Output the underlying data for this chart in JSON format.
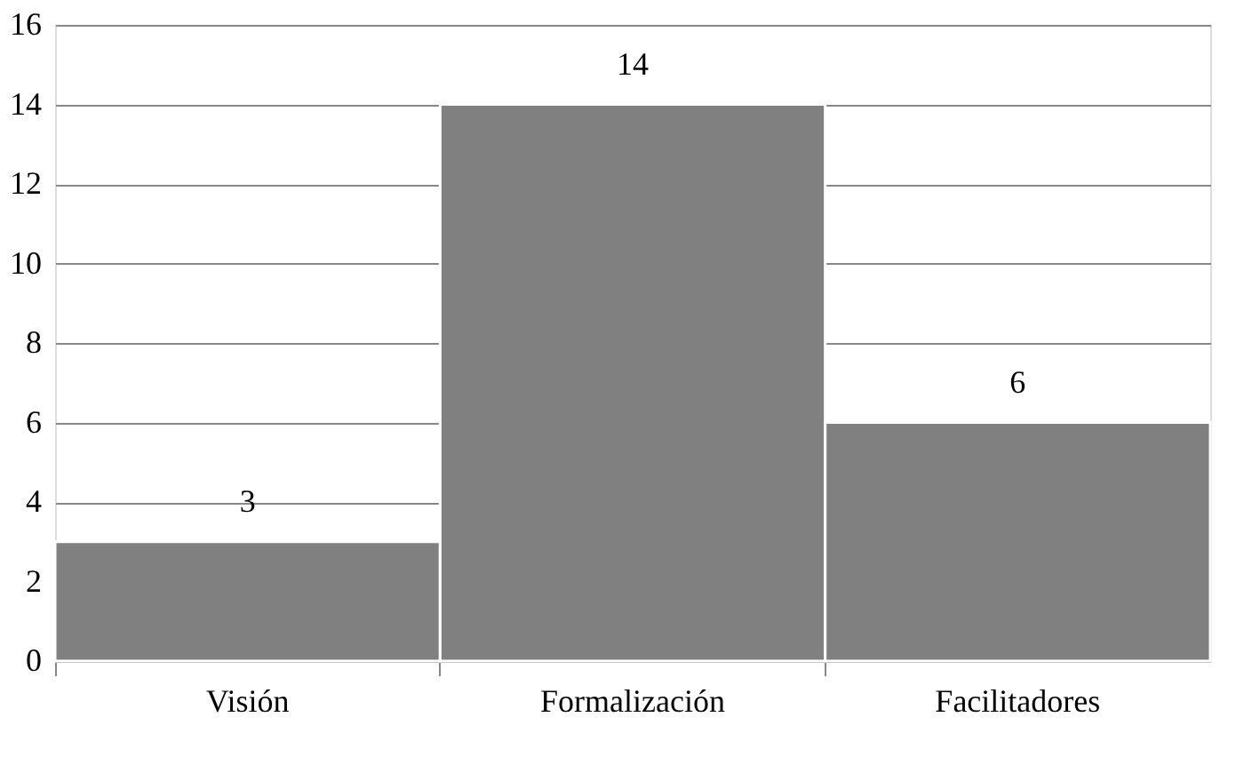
{
  "chart_data": {
    "type": "bar",
    "categories": [
      "Visión",
      "Formalización",
      "Facilitadores"
    ],
    "values": [
      3,
      14,
      6
    ],
    "color": "#808080",
    "ylim": [
      0,
      16
    ],
    "yticks": [
      0,
      2,
      4,
      6,
      8,
      10,
      12,
      14,
      16
    ],
    "grid": "y",
    "data_labels": true
  }
}
